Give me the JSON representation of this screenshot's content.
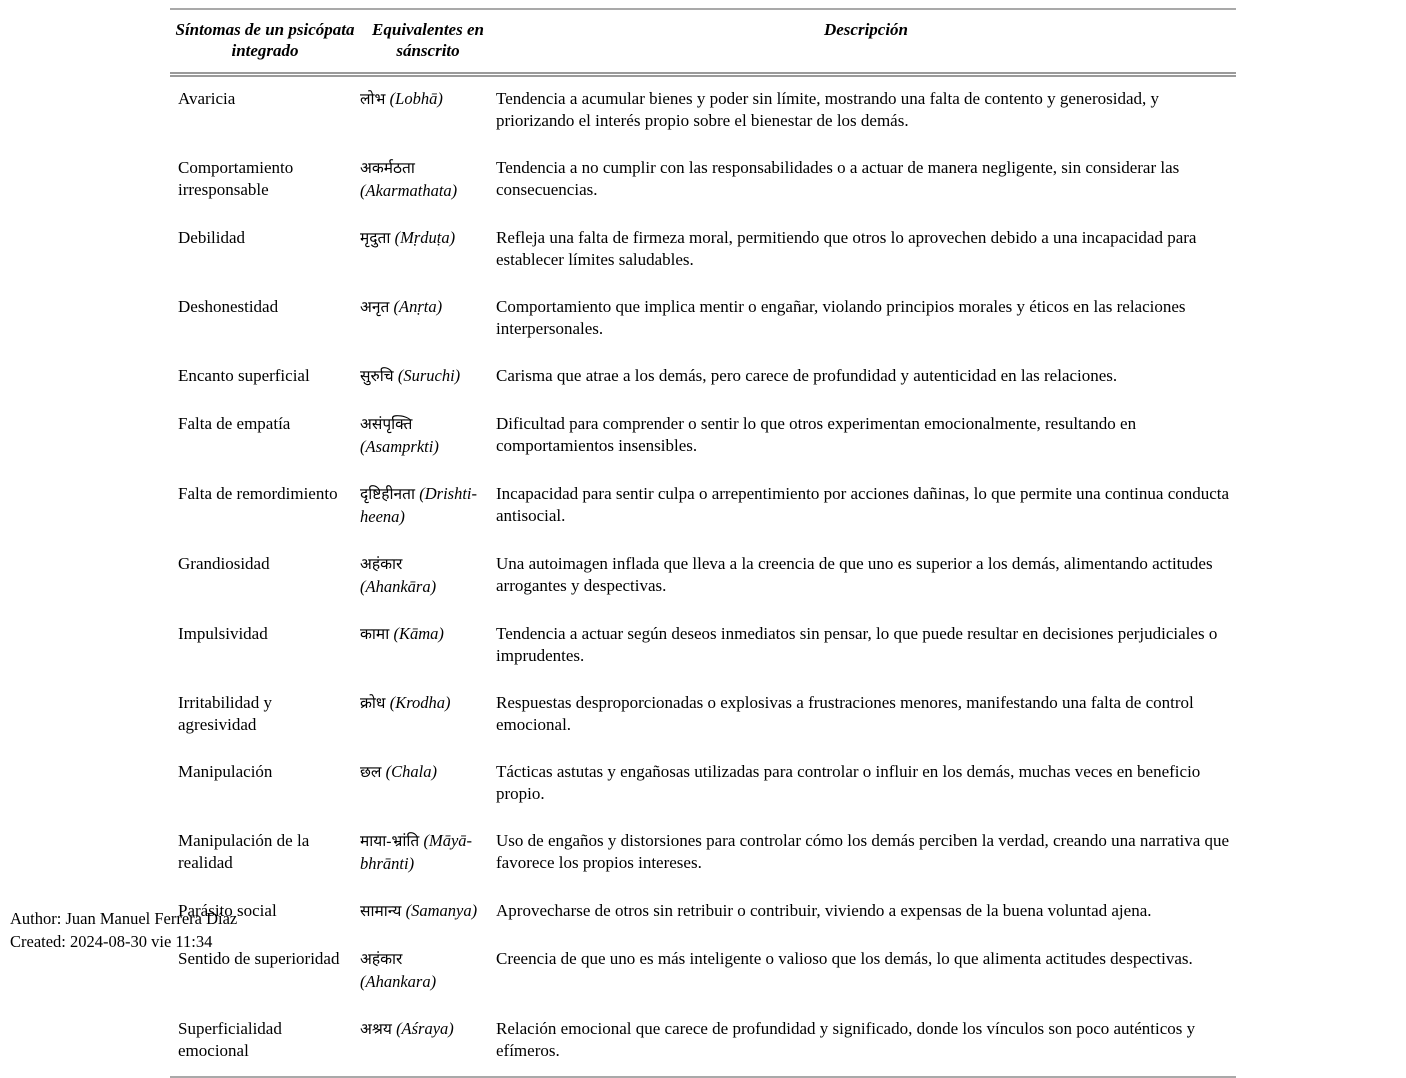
{
  "table": {
    "columns": [
      "Síntomas de un psicópata integrado",
      "Equivalentes en sánscrito",
      "Descripción"
    ],
    "rows": [
      {
        "symptom": "Avaricia",
        "sanskrit": "लोभ",
        "translit": "(Lobhā)",
        "description": "Tendencia a acumular bienes y poder sin límite, mostrando una falta de contento y generosidad, y priorizando el interés propio sobre el bienestar de los demás."
      },
      {
        "symptom": "Comportamiento irresponsable",
        "sanskrit": "अकर्मठता",
        "translit": "(Akarmathata)",
        "description": "Tendencia a no cumplir con las responsabilidades o a actuar de manera negligente, sin considerar las consecuencias."
      },
      {
        "symptom": "Debilidad",
        "sanskrit": "मृदुता",
        "translit": "(Mṛduṭa)",
        "description": "Refleja una falta de firmeza moral, permitiendo que otros lo aprovechen debido a una incapacidad para establecer límites saludables."
      },
      {
        "symptom": "Deshonestidad",
        "sanskrit": "अनृत",
        "translit": "(Anṛta)",
        "description": "Comportamiento que implica mentir o engañar, violando principios morales y éticos en las relaciones interpersonales."
      },
      {
        "symptom": "Encanto superficial",
        "sanskrit": "सुरुचि",
        "translit": "(Suruchi)",
        "description": "Carisma que atrae a los demás, pero carece de profundidad y autenticidad en las relaciones."
      },
      {
        "symptom": "Falta de empatía",
        "sanskrit": "असंपृक्ति",
        "translit": "(Asamprkti)",
        "description": "Dificultad para comprender o sentir lo que otros experimentan emocionalmente, resultando en comportamientos insensibles."
      },
      {
        "symptom": "Falta de remordimiento",
        "sanskrit": "दृष्टिहीनता",
        "translit": "(Drishti-heena)",
        "description": "Incapacidad para sentir culpa o arrepentimiento por acciones dañinas, lo que permite una continua conducta antisocial."
      },
      {
        "symptom": "Grandiosidad",
        "sanskrit": "अहंकार",
        "translit": "(Ahankāra)",
        "description": "Una autoimagen inflada que lleva a la creencia de que uno es superior a los demás, alimentando actitudes arrogantes y despectivas."
      },
      {
        "symptom": "Impulsividad",
        "sanskrit": "कामा",
        "translit": "(Kāma)",
        "description": "Tendencia a actuar según deseos inmediatos sin pensar, lo que puede resultar en decisiones perjudiciales o imprudentes."
      },
      {
        "symptom": "Irritabilidad y agresividad",
        "sanskrit": "क्रोध",
        "translit": "(Krodha)",
        "description": "Respuestas desproporcionadas o explosivas a frustraciones menores, manifestando una falta de control emocional."
      },
      {
        "symptom": "Manipulación",
        "sanskrit": "छल",
        "translit": "(Chala)",
        "description": "Tácticas astutas y engañosas utilizadas para controlar o influir en los demás, muchas veces en beneficio propio."
      },
      {
        "symptom": "Manipulación de la realidad",
        "sanskrit": "माया-भ्रांति",
        "translit": "(Māyā-bhrānti)",
        "description": "Uso de engaños y distorsiones para controlar cómo los demás perciben la verdad, creando una narrativa que favorece los propios intereses."
      },
      {
        "symptom": "Parásito social",
        "sanskrit": "सामान्य",
        "translit": "(Samanya)",
        "description": "Aprovecharse de otros sin retribuir o contribuir, viviendo a expensas de la buena voluntad ajena."
      },
      {
        "symptom": "Sentido de superioridad",
        "sanskrit": "अहंकार",
        "translit": "(Ahankara)",
        "description": "Creencia de que uno es más inteligente o valioso que los demás, lo que alimenta actitudes despectivas."
      },
      {
        "symptom": "Superficialidad emocional",
        "sanskrit": "अश्रय",
        "translit": "(Aśraya)",
        "description": "Relación emocional que carece de profundidad y significado, donde los vínculos son poco auténticos y efímeros."
      }
    ]
  },
  "footer": {
    "author": "Author: Juan Manuel Ferrera Díaz",
    "created": "Created: 2024-08-30 vie 11:34"
  },
  "colors": {
    "text": "#000000",
    "rule": "#a9a9a9",
    "background": "#ffffff"
  }
}
